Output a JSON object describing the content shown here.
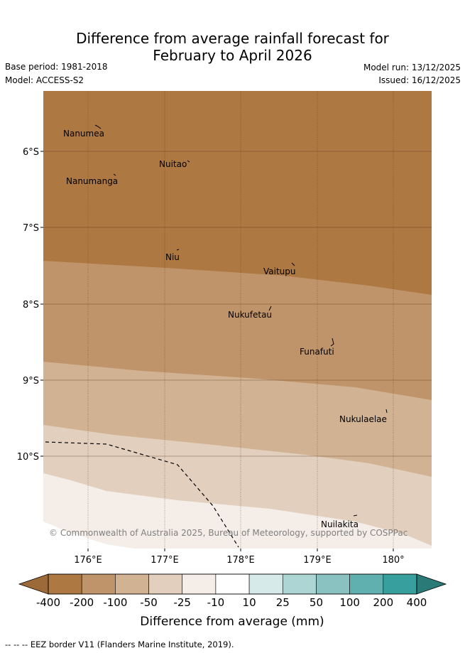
{
  "title_line1": "Difference from average rainfall forecast for",
  "title_line2": "February to April 2026",
  "base_period": "Base period: 1981-2018",
  "model": "Model: ACCESS-S2",
  "model_run": "Model run: 13/12/2025",
  "issued": "Issued: 16/12/2025",
  "copyright": "© Commonwealth of Australia 2025, Bureau of Meteorology, supported by COSPPac",
  "lat_labels": [
    "6°S",
    "7°S",
    "8°S",
    "9°S",
    "10°S"
  ],
  "lon_labels": [
    "176°E",
    "177°E",
    "178°E",
    "179°E",
    "180°"
  ],
  "islands": [
    "Nanumea",
    "Nuitao",
    "Nanumanga",
    "Niu",
    "Vaitupu",
    "Nukufetau",
    "Funafuti",
    "Nukulaelae",
    "Nuilakita"
  ],
  "legend": {
    "ticks": [
      "-400",
      "-200",
      "-100",
      "-50",
      "-25",
      "-10",
      "10",
      "25",
      "50",
      "100",
      "200",
      "400"
    ],
    "colors": [
      "#ad7841",
      "#c0946a",
      "#d1b292",
      "#e2cfbe",
      "#f4ede8",
      "#ffffff",
      "#d5eae9",
      "#acd5d4",
      "#89c2c1",
      "#5fb0ae",
      "#379f9d"
    ],
    "under_color": "#9c6a38",
    "over_color": "#2a7a78",
    "label": "Difference from average (mm)"
  },
  "footer": "--  --  -- EEZ border V11 (Flanders Marine Institute, 2019)."
}
